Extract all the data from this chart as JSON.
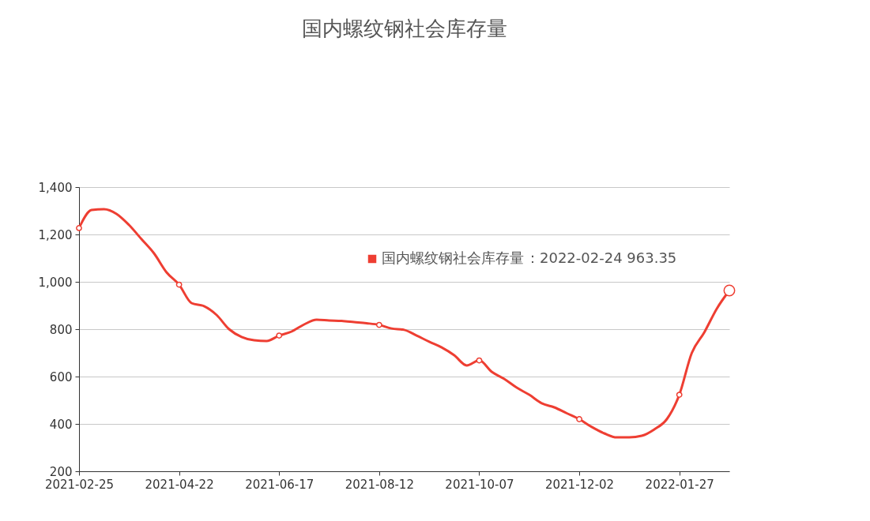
{
  "chart_data": {
    "type": "line",
    "title": "国内螺纹钢社会库存量",
    "x": [
      "2021-02-25",
      "2021-03-04",
      "2021-03-11",
      "2021-03-18",
      "2021-03-25",
      "2021-04-01",
      "2021-04-08",
      "2021-04-15",
      "2021-04-22",
      "2021-04-29",
      "2021-05-06",
      "2021-05-13",
      "2021-05-20",
      "2021-05-27",
      "2021-06-03",
      "2021-06-10",
      "2021-06-17",
      "2021-06-24",
      "2021-07-01",
      "2021-07-08",
      "2021-07-15",
      "2021-07-22",
      "2021-07-29",
      "2021-08-05",
      "2021-08-12",
      "2021-08-19",
      "2021-08-26",
      "2021-09-02",
      "2021-09-09",
      "2021-09-16",
      "2021-09-23",
      "2021-09-30",
      "2021-10-07",
      "2021-10-14",
      "2021-10-21",
      "2021-10-28",
      "2021-11-04",
      "2021-11-11",
      "2021-11-18",
      "2021-11-25",
      "2021-12-02",
      "2021-12-09",
      "2021-12-16",
      "2021-12-23",
      "2021-12-30",
      "2022-01-06",
      "2022-01-13",
      "2022-01-20",
      "2022-01-27",
      "2022-02-03",
      "2022-02-10",
      "2022-02-17",
      "2022-02-24"
    ],
    "series": [
      {
        "name": "国内螺纹钢社会库存量",
        "color": "#ee3e32",
        "values": [
          1227,
          1303,
          1307,
          1287,
          1240,
          1180,
          1120,
          1040,
          988,
          910,
          897,
          860,
          800,
          767,
          753,
          750,
          773,
          790,
          820,
          840,
          837,
          835,
          830,
          825,
          818,
          803,
          797,
          773,
          747,
          723,
          690,
          647,
          668,
          620,
          590,
          553,
          523,
          487,
          470,
          445,
          420,
          387,
          360,
          343,
          343,
          350,
          377,
          420,
          523,
          700,
          787,
          887,
          963.35
        ]
      }
    ],
    "xlim": [
      "2021-02-25",
      "2022-02-24"
    ],
    "xticks": [
      "2021-02-25",
      "2021-04-22",
      "2021-06-17",
      "2021-08-12",
      "2021-10-07",
      "2021-12-02",
      "2022-01-27"
    ],
    "ylim": [
      200,
      1400
    ],
    "yticks": [
      200,
      400,
      600,
      800,
      {
        "value": 1000,
        "label": "1,000"
      },
      {
        "value": 1200,
        "label": "1,200"
      },
      {
        "value": 1400,
        "label": "1,400"
      }
    ],
    "grid": "y",
    "line_style": "solid",
    "annotations": [
      "：2022-02-24 963.35"
    ]
  }
}
